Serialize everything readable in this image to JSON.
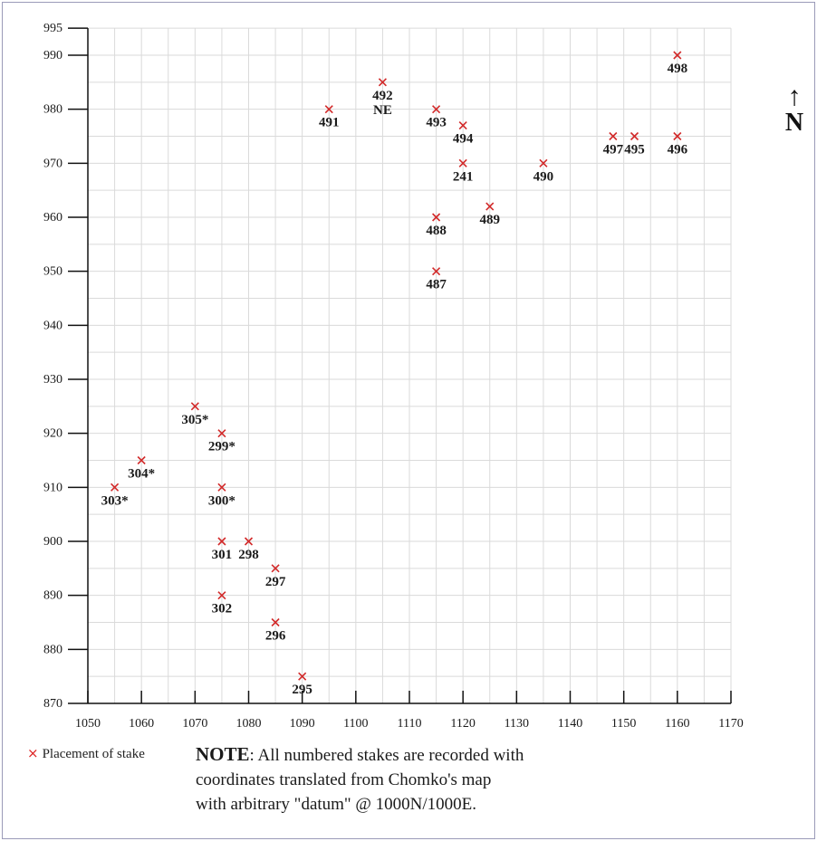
{
  "chart_data": {
    "type": "scatter",
    "title": "",
    "xlabel": "",
    "ylabel": "",
    "xlim": [
      1050,
      1170
    ],
    "ylim": [
      870,
      995
    ],
    "x_ticks": [
      1050,
      1060,
      1070,
      1080,
      1090,
      1100,
      1110,
      1120,
      1130,
      1140,
      1150,
      1160,
      1170
    ],
    "y_ticks": [
      870,
      880,
      890,
      900,
      910,
      920,
      930,
      940,
      950,
      960,
      970,
      980,
      990,
      995
    ],
    "grid": true,
    "points": [
      {
        "label": "498",
        "x": 1160,
        "y": 990
      },
      {
        "label": "492",
        "label2": "NE",
        "x": 1105,
        "y": 985
      },
      {
        "label": "491",
        "x": 1095,
        "y": 980
      },
      {
        "label": "493",
        "x": 1115,
        "y": 980
      },
      {
        "label": "494",
        "x": 1120,
        "y": 977
      },
      {
        "label": "497",
        "x": 1148,
        "y": 975
      },
      {
        "label": "495",
        "x": 1152,
        "y": 975
      },
      {
        "label": "496",
        "x": 1160,
        "y": 975
      },
      {
        "label": "241",
        "x": 1120,
        "y": 970
      },
      {
        "label": "490",
        "x": 1135,
        "y": 970
      },
      {
        "label": "489",
        "x": 1125,
        "y": 962
      },
      {
        "label": "488",
        "x": 1115,
        "y": 960
      },
      {
        "label": "487",
        "x": 1115,
        "y": 950
      },
      {
        "label": "305*",
        "x": 1070,
        "y": 925
      },
      {
        "label": "299*",
        "x": 1075,
        "y": 920
      },
      {
        "label": "304*",
        "x": 1060,
        "y": 915
      },
      {
        "label": "303*",
        "x": 1055,
        "y": 910
      },
      {
        "label": "300*",
        "x": 1075,
        "y": 910
      },
      {
        "label": "301",
        "x": 1075,
        "y": 900
      },
      {
        "label": "298",
        "x": 1080,
        "y": 900
      },
      {
        "label": "297",
        "x": 1085,
        "y": 895
      },
      {
        "label": "302",
        "x": 1075,
        "y": 890
      },
      {
        "label": "296",
        "x": 1085,
        "y": 885
      },
      {
        "label": "295",
        "x": 1090,
        "y": 875
      }
    ]
  },
  "north": {
    "arrow": "↑",
    "label": "N"
  },
  "legend": {
    "icon": "×",
    "text": "Placement of stake"
  },
  "note": {
    "head": "NOTE",
    "line1": ": All numbered stakes are recorded with",
    "line2": "coordinates translated from Chomko's map",
    "line3": "with arbitrary \"datum\" @ 1000N/1000E."
  },
  "colors": {
    "marker": "#d22a2a",
    "grid": "#dadada",
    "axis": "#111111",
    "text": "#1a1a1a"
  }
}
